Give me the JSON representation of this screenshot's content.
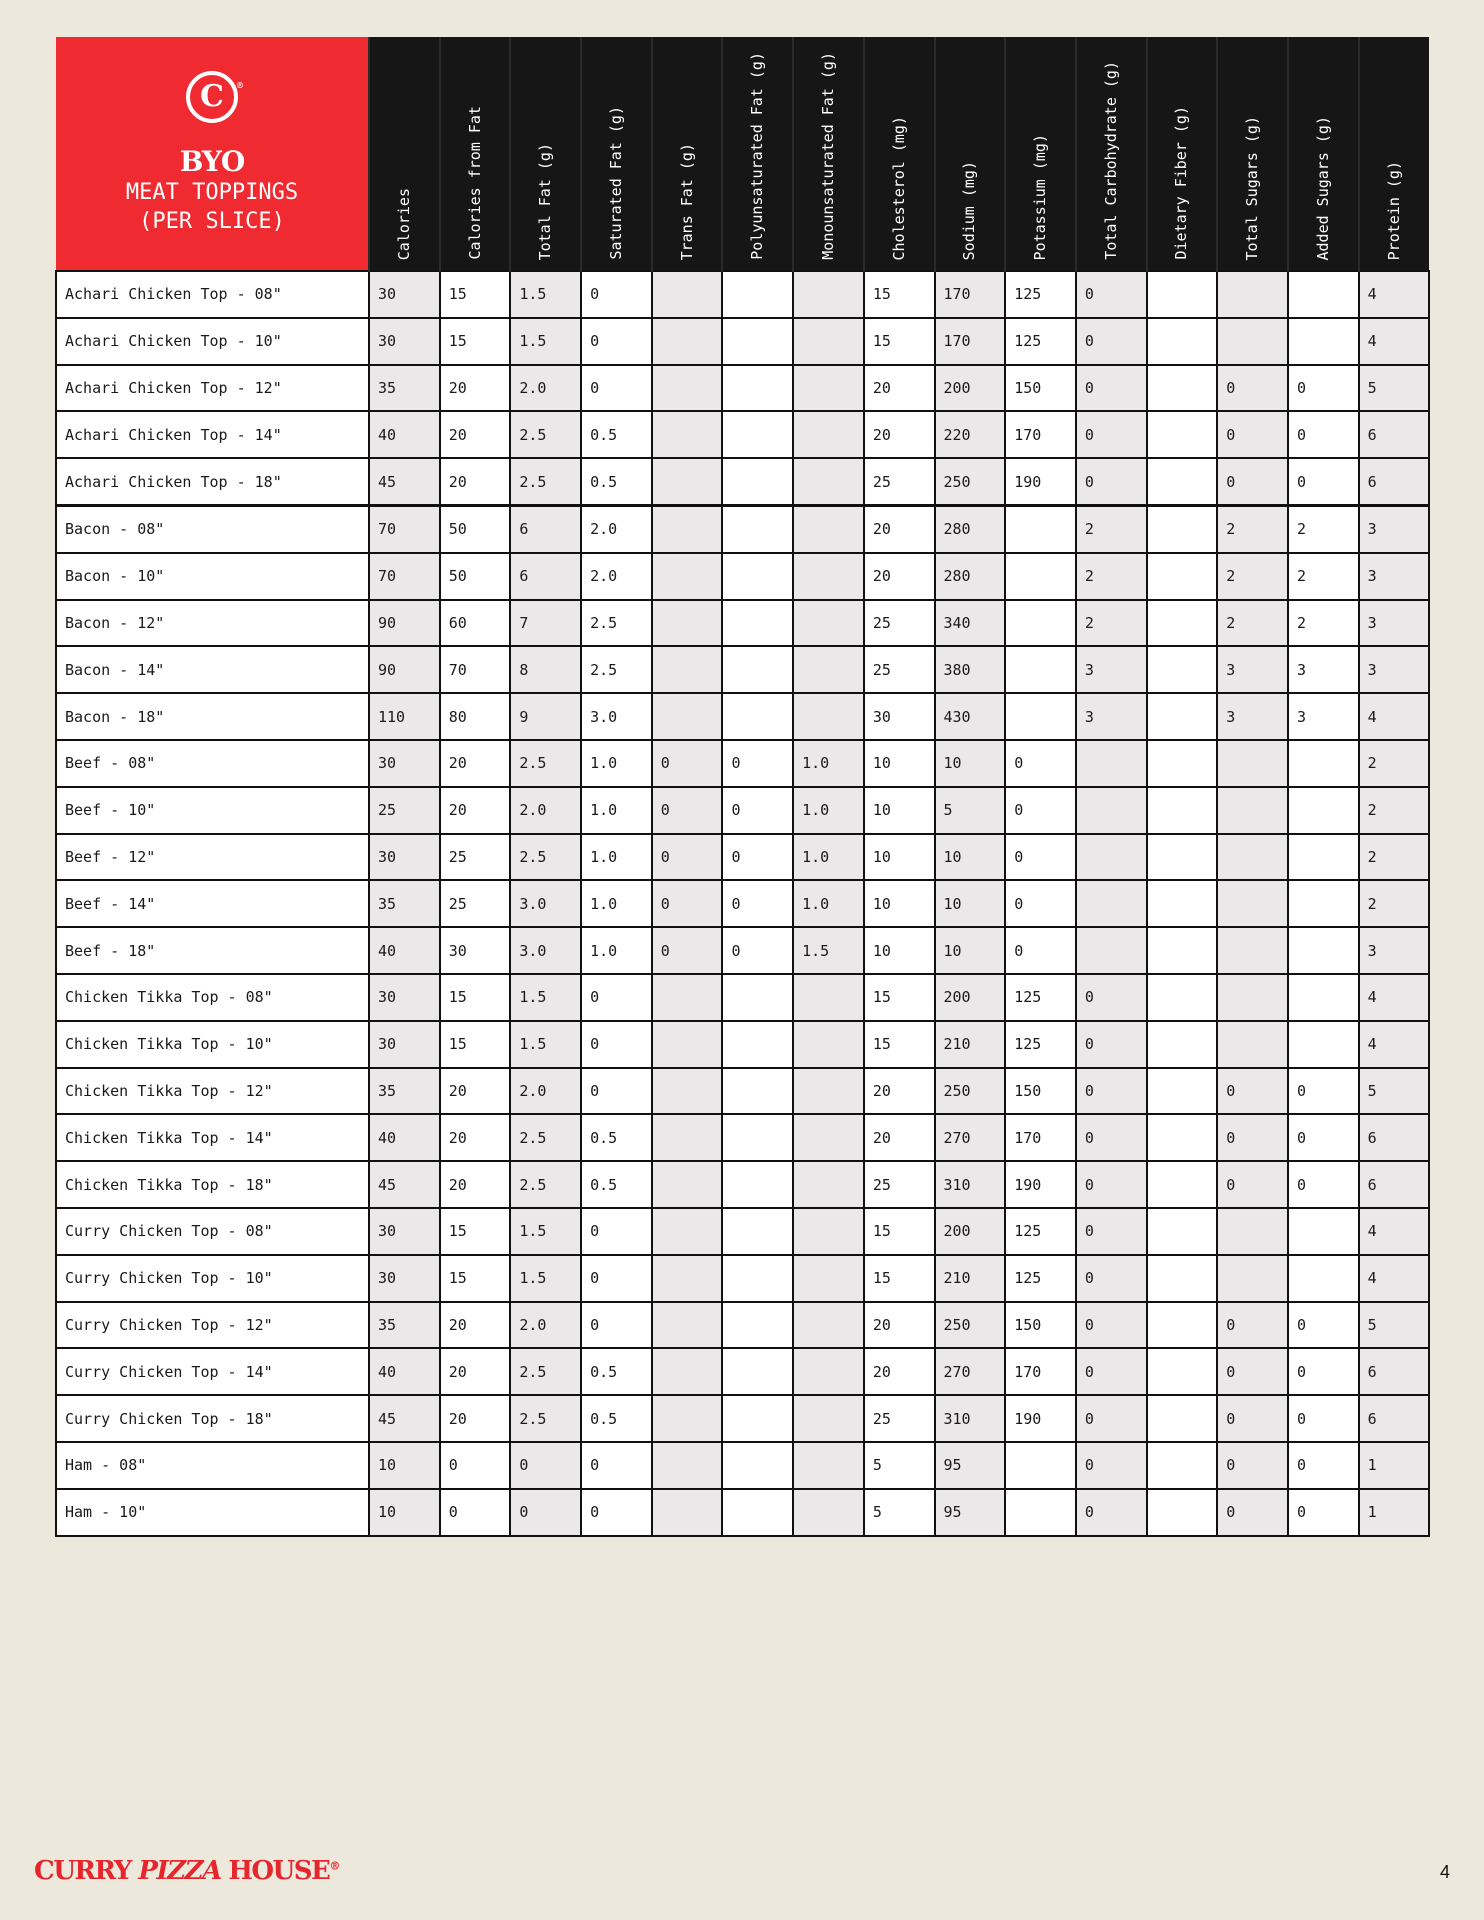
{
  "header": {
    "logo_text": "C",
    "title": "BYO",
    "subtitle_1": "MEAT TOPPINGS",
    "subtitle_2": "(PER SLICE)",
    "columns": [
      "Calories",
      "Calories from Fat",
      "Total Fat (g)",
      "Saturated Fat (g)",
      "Trans Fat (g)",
      "Polyunsaturated Fat (g)",
      "Monounsaturated Fat (g)",
      "Cholesterol (mg)",
      "Sodium (mg)",
      "Potassium (mg)",
      "Total Carbohydrate (g)",
      "Dietary Fiber (g)",
      "Total Sugars (g)",
      "Added Sugars (g)",
      "Protein (g)"
    ]
  },
  "colors": {
    "brand_red": "#ef2a30",
    "header_black": "#161616",
    "background": "#ece9dc",
    "shaded_cell": "#eae8e9"
  },
  "rows": [
    [
      "Achari Chicken Top - 08\"",
      "30",
      "15",
      "1.5",
      "0",
      "",
      "",
      "",
      "15",
      "170",
      "125",
      "0",
      "",
      "",
      "",
      "4"
    ],
    [
      "Achari Chicken Top - 10\"",
      "30",
      "15",
      "1.5",
      "0",
      "",
      "",
      "",
      "15",
      "170",
      "125",
      "0",
      "",
      "",
      "",
      "4"
    ],
    [
      "Achari Chicken Top - 12\"",
      "35",
      "20",
      "2.0",
      "0",
      "",
      "",
      "",
      "20",
      "200",
      "150",
      "0",
      "",
      "0",
      "0",
      "5"
    ],
    [
      "Achari Chicken Top - 14\"",
      "40",
      "20",
      "2.5",
      "0.5",
      "",
      "",
      "",
      "20",
      "220",
      "170",
      "0",
      "",
      "0",
      "0",
      "6"
    ],
    [
      "Achari Chicken Top - 18\"",
      "45",
      "20",
      "2.5",
      "0.5",
      "",
      "",
      "",
      "25",
      "250",
      "190",
      "0",
      "",
      "0",
      "0",
      "6"
    ],
    [
      "Bacon - 08\"",
      "70",
      "50",
      "6",
      "2.0",
      "",
      "",
      "",
      "20",
      "280",
      "",
      "2",
      "",
      "2",
      "2",
      "3"
    ],
    [
      "Bacon - 10\"",
      "70",
      "50",
      "6",
      "2.0",
      "",
      "",
      "",
      "20",
      "280",
      "",
      "2",
      "",
      "2",
      "2",
      "3"
    ],
    [
      "Bacon - 12\"",
      "90",
      "60",
      "7",
      "2.5",
      "",
      "",
      "",
      "25",
      "340",
      "",
      "2",
      "",
      "2",
      "2",
      "3"
    ],
    [
      "Bacon - 14\"",
      "90",
      "70",
      "8",
      "2.5",
      "",
      "",
      "",
      "25",
      "380",
      "",
      "3",
      "",
      "3",
      "3",
      "3"
    ],
    [
      "Bacon - 18\"",
      "110",
      "80",
      "9",
      "3.0",
      "",
      "",
      "",
      "30",
      "430",
      "",
      "3",
      "",
      "3",
      "3",
      "4"
    ],
    [
      "Beef - 08\"",
      "30",
      "20",
      "2.5",
      "1.0",
      "0",
      "0",
      "1.0",
      "10",
      "10",
      "0",
      "",
      "",
      "",
      "",
      "2"
    ],
    [
      "Beef - 10\"",
      "25",
      "20",
      "2.0",
      "1.0",
      "0",
      "0",
      "1.0",
      "10",
      "5",
      "0",
      "",
      "",
      "",
      "",
      "2"
    ],
    [
      "Beef - 12\"",
      "30",
      "25",
      "2.5",
      "1.0",
      "0",
      "0",
      "1.0",
      "10",
      "10",
      "0",
      "",
      "",
      "",
      "",
      "2"
    ],
    [
      "Beef - 14\"",
      "35",
      "25",
      "3.0",
      "1.0",
      "0",
      "0",
      "1.0",
      "10",
      "10",
      "0",
      "",
      "",
      "",
      "",
      "2"
    ],
    [
      "Beef - 18\"",
      "40",
      "30",
      "3.0",
      "1.0",
      "0",
      "0",
      "1.5",
      "10",
      "10",
      "0",
      "",
      "",
      "",
      "",
      "3"
    ],
    [
      "Chicken Tikka Top - 08\"",
      "30",
      "15",
      "1.5",
      "0",
      "",
      "",
      "",
      "15",
      "200",
      "125",
      "0",
      "",
      "",
      "",
      "4"
    ],
    [
      "Chicken Tikka Top - 10\"",
      "30",
      "15",
      "1.5",
      "0",
      "",
      "",
      "",
      "15",
      "210",
      "125",
      "0",
      "",
      "",
      "",
      "4"
    ],
    [
      "Chicken Tikka Top - 12\"",
      "35",
      "20",
      "2.0",
      "0",
      "",
      "",
      "",
      "20",
      "250",
      "150",
      "0",
      "",
      "0",
      "0",
      "5"
    ],
    [
      "Chicken Tikka Top - 14\"",
      "40",
      "20",
      "2.5",
      "0.5",
      "",
      "",
      "",
      "20",
      "270",
      "170",
      "0",
      "",
      "0",
      "0",
      "6"
    ],
    [
      "Chicken Tikka Top - 18\"",
      "45",
      "20",
      "2.5",
      "0.5",
      "",
      "",
      "",
      "25",
      "310",
      "190",
      "0",
      "",
      "0",
      "0",
      "6"
    ],
    [
      "Curry Chicken Top - 08\"",
      "30",
      "15",
      "1.5",
      "0",
      "",
      "",
      "",
      "15",
      "200",
      "125",
      "0",
      "",
      "",
      "",
      "4"
    ],
    [
      "Curry Chicken Top - 10\"",
      "30",
      "15",
      "1.5",
      "0",
      "",
      "",
      "",
      "15",
      "210",
      "125",
      "0",
      "",
      "",
      "",
      "4"
    ],
    [
      "Curry Chicken Top - 12\"",
      "35",
      "20",
      "2.0",
      "0",
      "",
      "",
      "",
      "20",
      "250",
      "150",
      "0",
      "",
      "0",
      "0",
      "5"
    ],
    [
      "Curry Chicken Top - 14\"",
      "40",
      "20",
      "2.5",
      "0.5",
      "",
      "",
      "",
      "20",
      "270",
      "170",
      "0",
      "",
      "0",
      "0",
      "6"
    ],
    [
      "Curry Chicken Top - 18\"",
      "45",
      "20",
      "2.5",
      "0.5",
      "",
      "",
      "",
      "25",
      "310",
      "190",
      "0",
      "",
      "0",
      "0",
      "6"
    ],
    [
      "Ham - 08\"",
      "10",
      "0",
      "0",
      "0",
      "",
      "",
      "",
      "5",
      "95",
      "",
      "0",
      "",
      "0",
      "0",
      "1"
    ],
    [
      "Ham - 10\"",
      "10",
      "0",
      "0",
      "0",
      "",
      "",
      "",
      "5",
      "95",
      "",
      "0",
      "",
      "0",
      "0",
      "1"
    ]
  ],
  "footer": {
    "brand_1": "CURRY ",
    "brand_2": "PIZZA",
    "brand_3": " HOUSE",
    "registered": "®",
    "page_number": "4"
  }
}
